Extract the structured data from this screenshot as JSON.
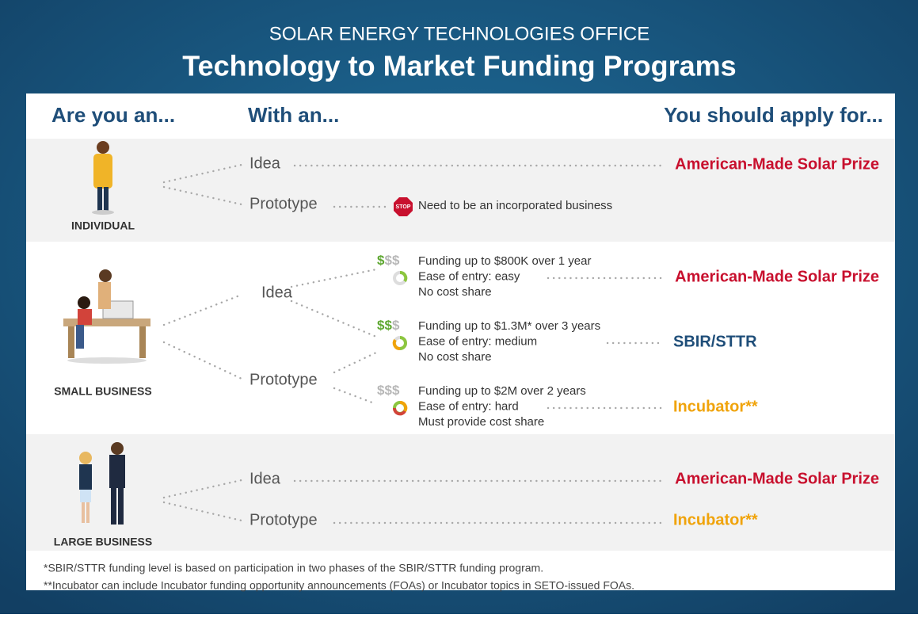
{
  "header": {
    "subtitle": "SOLAR ENERGY TECHNOLOGIES OFFICE",
    "title": "Technology to Market Funding Programs"
  },
  "columns": [
    "Are you an...",
    "With an...",
    "You should apply for..."
  ],
  "rows": [
    {
      "label": "INDIVIDUAL",
      "paths": [
        {
          "stage": "Idea",
          "program": "American-Made Solar Prize",
          "color": "#c8102e"
        },
        {
          "stage": "Prototype",
          "icon": "STOP",
          "note": "Need to be an incorporated business"
        }
      ]
    },
    {
      "label": "SMALL BUSINESS",
      "stages": [
        "Idea",
        "Prototype"
      ],
      "options": [
        {
          "dollars": "$$$",
          "lines": [
            "Funding up to $800K over 1 year",
            "Ease of entry: easy",
            "No cost share"
          ],
          "program": "American-Made Solar Prize",
          "color": "#c8102e"
        },
        {
          "dollars": "$$$",
          "lines": [
            "Funding up to $1.3M* over 3 years",
            "Ease of entry: medium",
            "No cost share"
          ],
          "program": "SBIR/STTR",
          "color": "#1f4e79"
        },
        {
          "dollars": "$$$",
          "lines": [
            "Funding up to $2M over 2 years",
            "Ease of entry: hard",
            "Must provide cost share"
          ],
          "program": "Incubator**",
          "color": "#f0a30a"
        }
      ]
    },
    {
      "label": "LARGE BUSINESS",
      "paths": [
        {
          "stage": "Idea",
          "program": "American-Made Solar Prize",
          "color": "#c8102e"
        },
        {
          "stage": "Prototype",
          "program": "Incubator**",
          "color": "#f0a30a"
        }
      ]
    }
  ],
  "footnotes": [
    "*SBIR/STTR funding level is based on participation in two phases of the SBIR/STTR funding program.",
    "**Incubator can include Incubator funding opportunity announcements (FOAs) or Incubator topics in SETO-issued FOAs."
  ]
}
